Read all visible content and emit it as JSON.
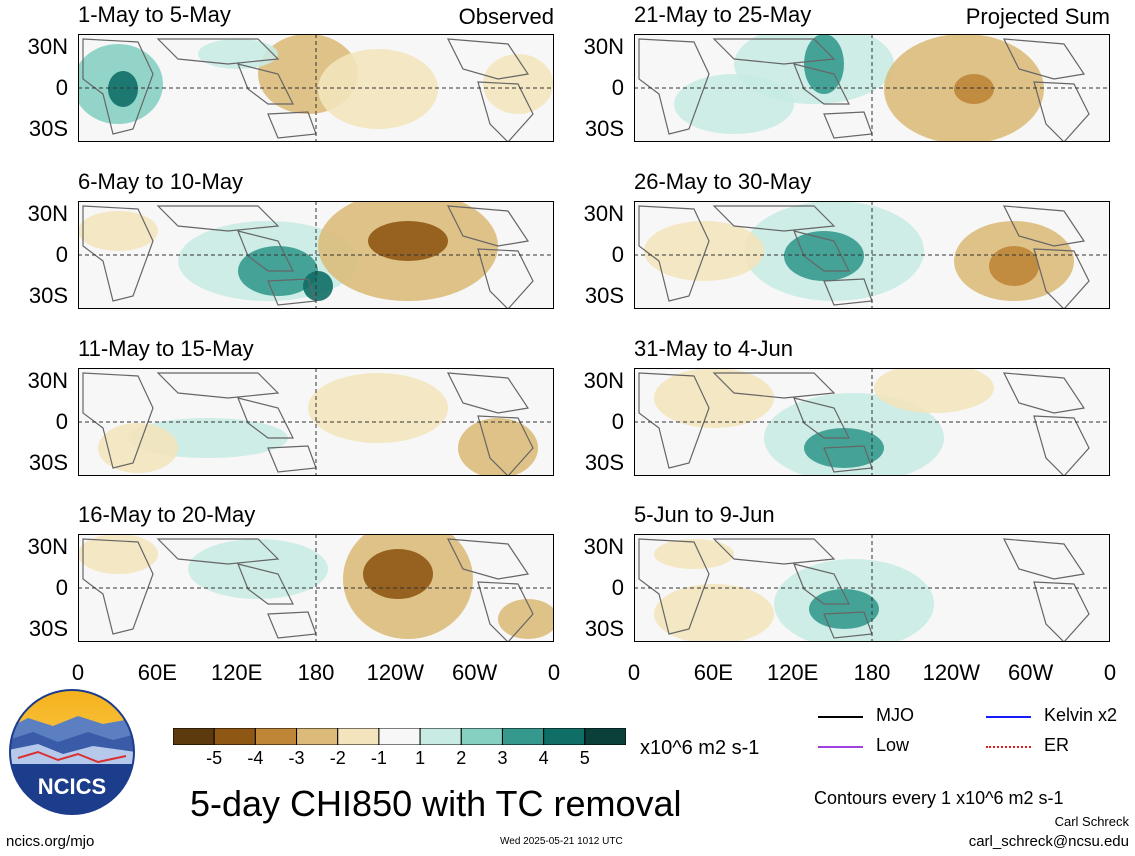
{
  "chart_data": {
    "type": "heatmap",
    "title": "5-day CHI850 with TC removal",
    "units": "x10^6 m2 s-1",
    "contour_note": "Contours every 1 x10^6 m2 s-1",
    "y_ticks": [
      "30N",
      "0",
      "30S"
    ],
    "x_ticks": [
      "0",
      "60E",
      "120E",
      "180",
      "120W",
      "60W",
      "0"
    ],
    "colorbar": {
      "levels": [
        "-5",
        "-4",
        "-3",
        "-2",
        "-1",
        "1",
        "2",
        "3",
        "4",
        "5"
      ],
      "colors": [
        "#5c3a0d",
        "#8f5714",
        "#bf8638",
        "#dcbb7a",
        "#f3e4bd",
        "#f7f7f7",
        "#c8ebe3",
        "#86d0c2",
        "#36998d",
        "#0f6e66",
        "#0a3f3a"
      ]
    },
    "panels": [
      {
        "label": "1-May to 5-May",
        "tag": "Observed"
      },
      {
        "label": "21-May to 25-May",
        "tag": "Projected Sum"
      },
      {
        "label": "6-May to 10-May",
        "tag": ""
      },
      {
        "label": "26-May to 30-May",
        "tag": ""
      },
      {
        "label": "11-May to 15-May",
        "tag": ""
      },
      {
        "label": "31-May to 4-Jun",
        "tag": ""
      },
      {
        "label": "16-May to 20-May",
        "tag": ""
      },
      {
        "label": "5-Jun to 9-Jun",
        "tag": ""
      }
    ],
    "legend": [
      {
        "name": "MJO",
        "color": "#000000"
      },
      {
        "name": "Kelvin x2",
        "color": "#1a1aff"
      },
      {
        "name": "Low",
        "color": "#a040e0"
      },
      {
        "name": "ER",
        "color": "#e02020"
      }
    ]
  },
  "logo": {
    "text": "NCICS"
  },
  "footer": {
    "url": "ncics.org/mjo",
    "timestamp": "Wed 2025-05-21 1012 UTC",
    "author": "Carl Schreck",
    "email": "carl_schreck@ncsu.edu"
  }
}
